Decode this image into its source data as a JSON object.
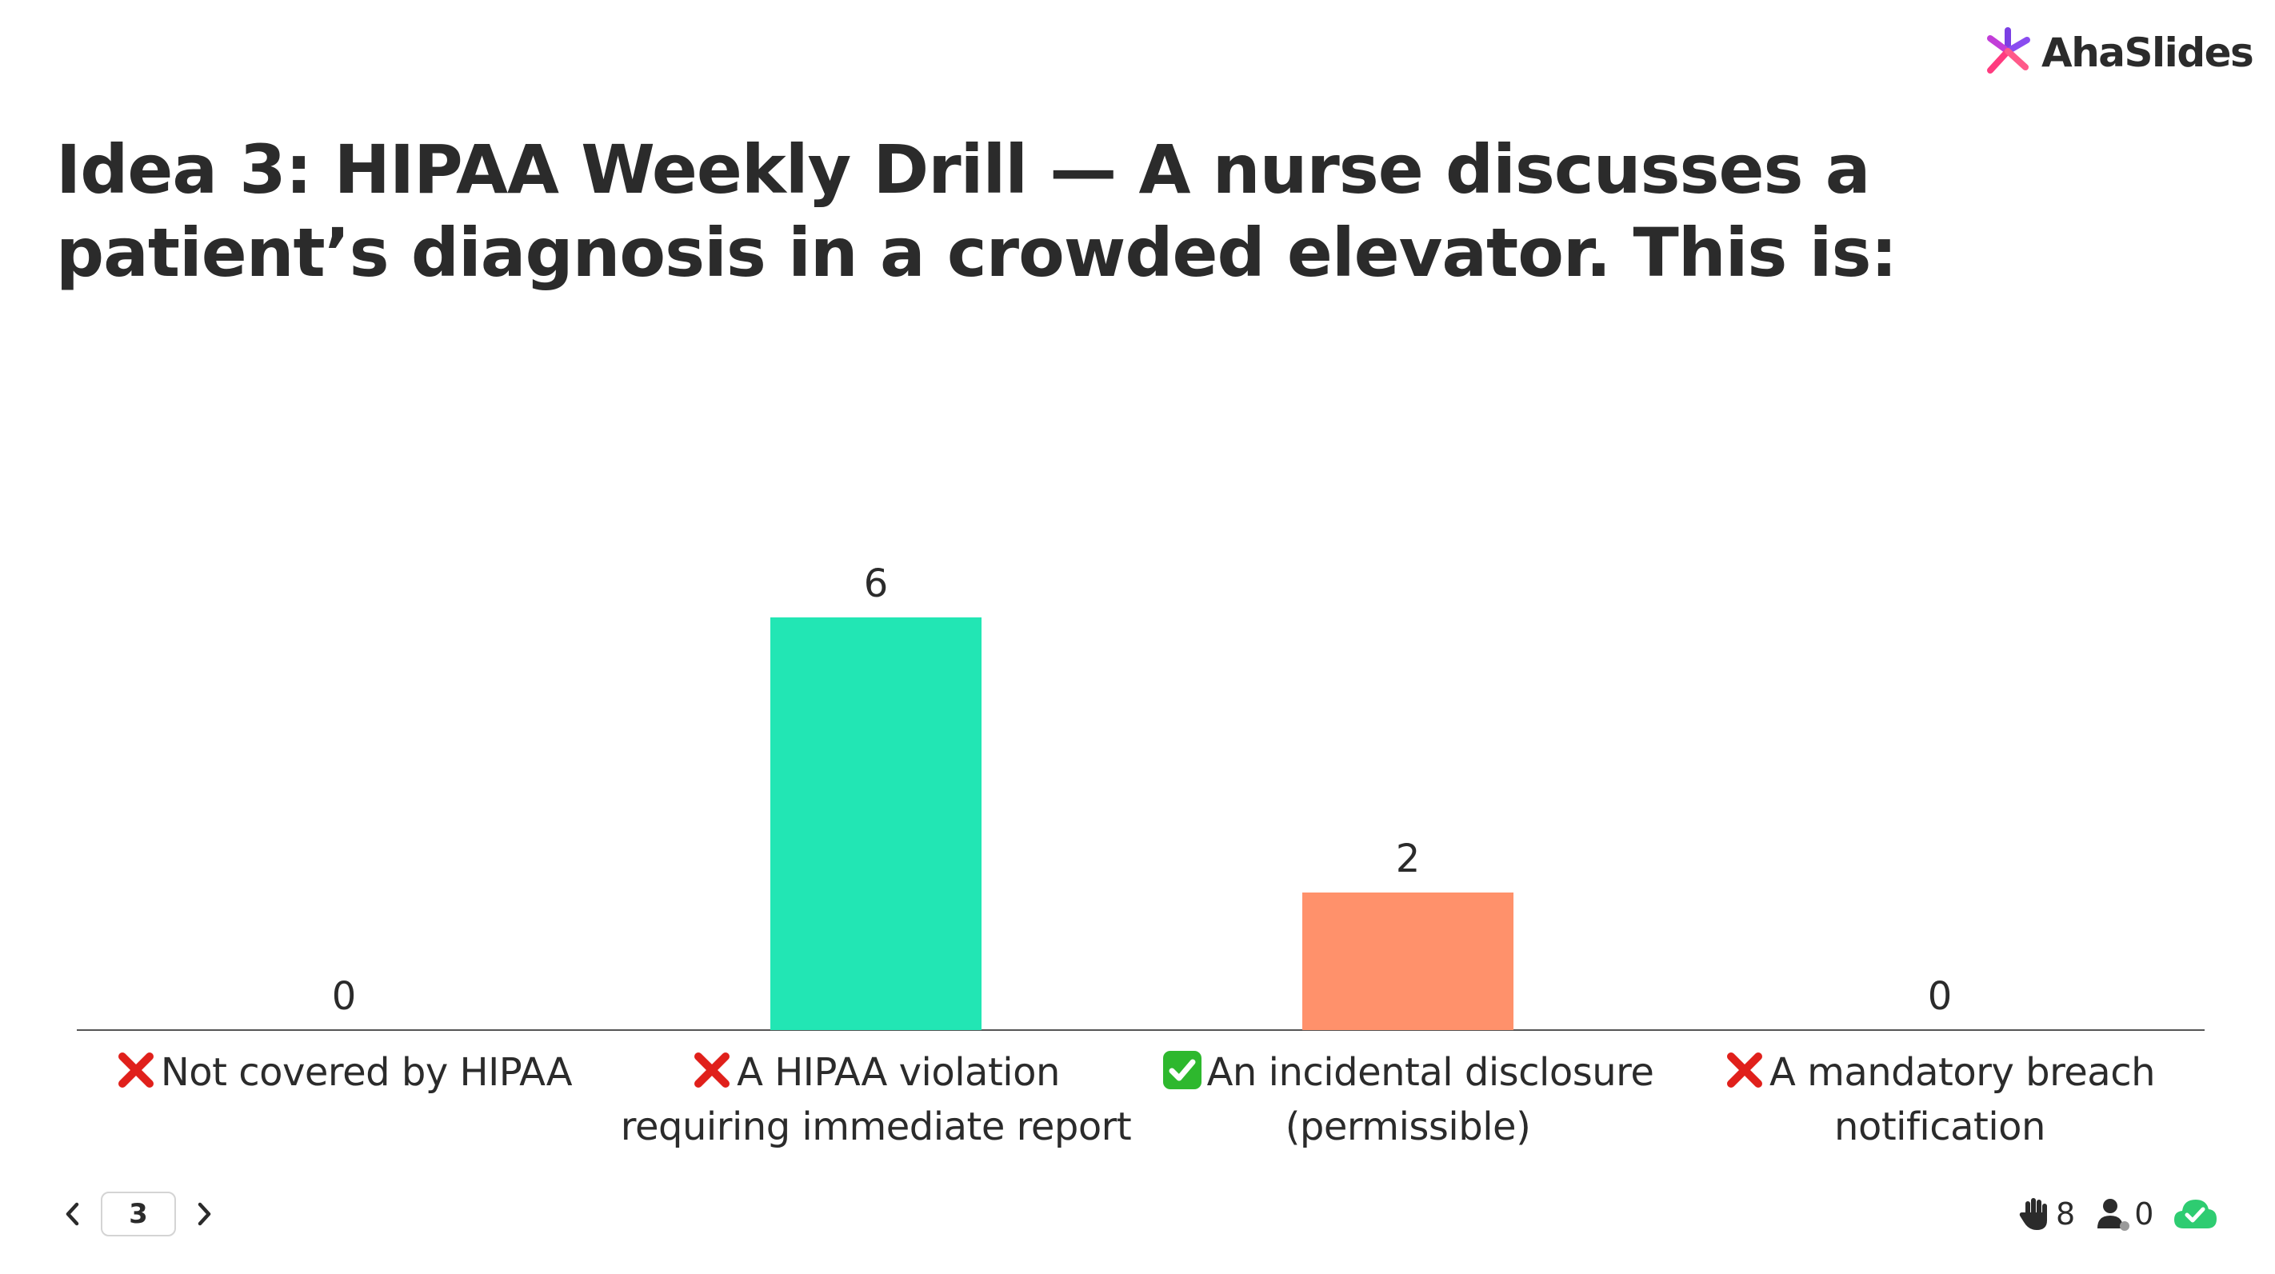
{
  "brand": {
    "name": "AhaSlides",
    "icon": "ahaslides-logo-icon"
  },
  "slide": {
    "title": "Idea 3: HIPAA Weekly Drill — A nurse discusses a patient’s diagnosis in a crowded elevator. This is:"
  },
  "chart_data": {
    "type": "bar",
    "categories": [
      "Not covered by HIPAA",
      "A HIPAA violation requiring immediate report",
      "An incidental disclosure (permissible)",
      "A mandatory breach notification"
    ],
    "values": [
      0,
      6,
      2,
      0
    ],
    "value_labels": [
      "0",
      "6",
      "2",
      "0"
    ],
    "correct": [
      false,
      false,
      true,
      false
    ],
    "colors": [
      "#5b6cff",
      "#22e6b4",
      "#ff916b",
      "#ff4f8b"
    ],
    "title": "",
    "xlabel": "",
    "ylabel": "",
    "ylim": [
      0,
      6
    ],
    "grid": false,
    "legend": "none"
  },
  "labels": {
    "opt0": "Not covered by HIPAA",
    "opt1a": "A HIPAA violation",
    "opt1b": "requiring immediate report",
    "opt2a": "An incidental disclosure",
    "opt2b": "(permissible)",
    "opt3a": "A mandatory breach",
    "opt3b": "notification"
  },
  "icons": {
    "wrong": "cross-mark-icon",
    "right": "check-mark-icon"
  },
  "footer": {
    "slide_number": "3",
    "prev_icon": "chevron-left-icon",
    "next_icon": "chevron-right-icon",
    "raised_hands": "8",
    "audience_count": "0",
    "sync_icon": "cloud-check-icon"
  },
  "colors": {
    "text": "#2b2b2b",
    "success": "#2ecc71",
    "error": "#e0201b"
  }
}
